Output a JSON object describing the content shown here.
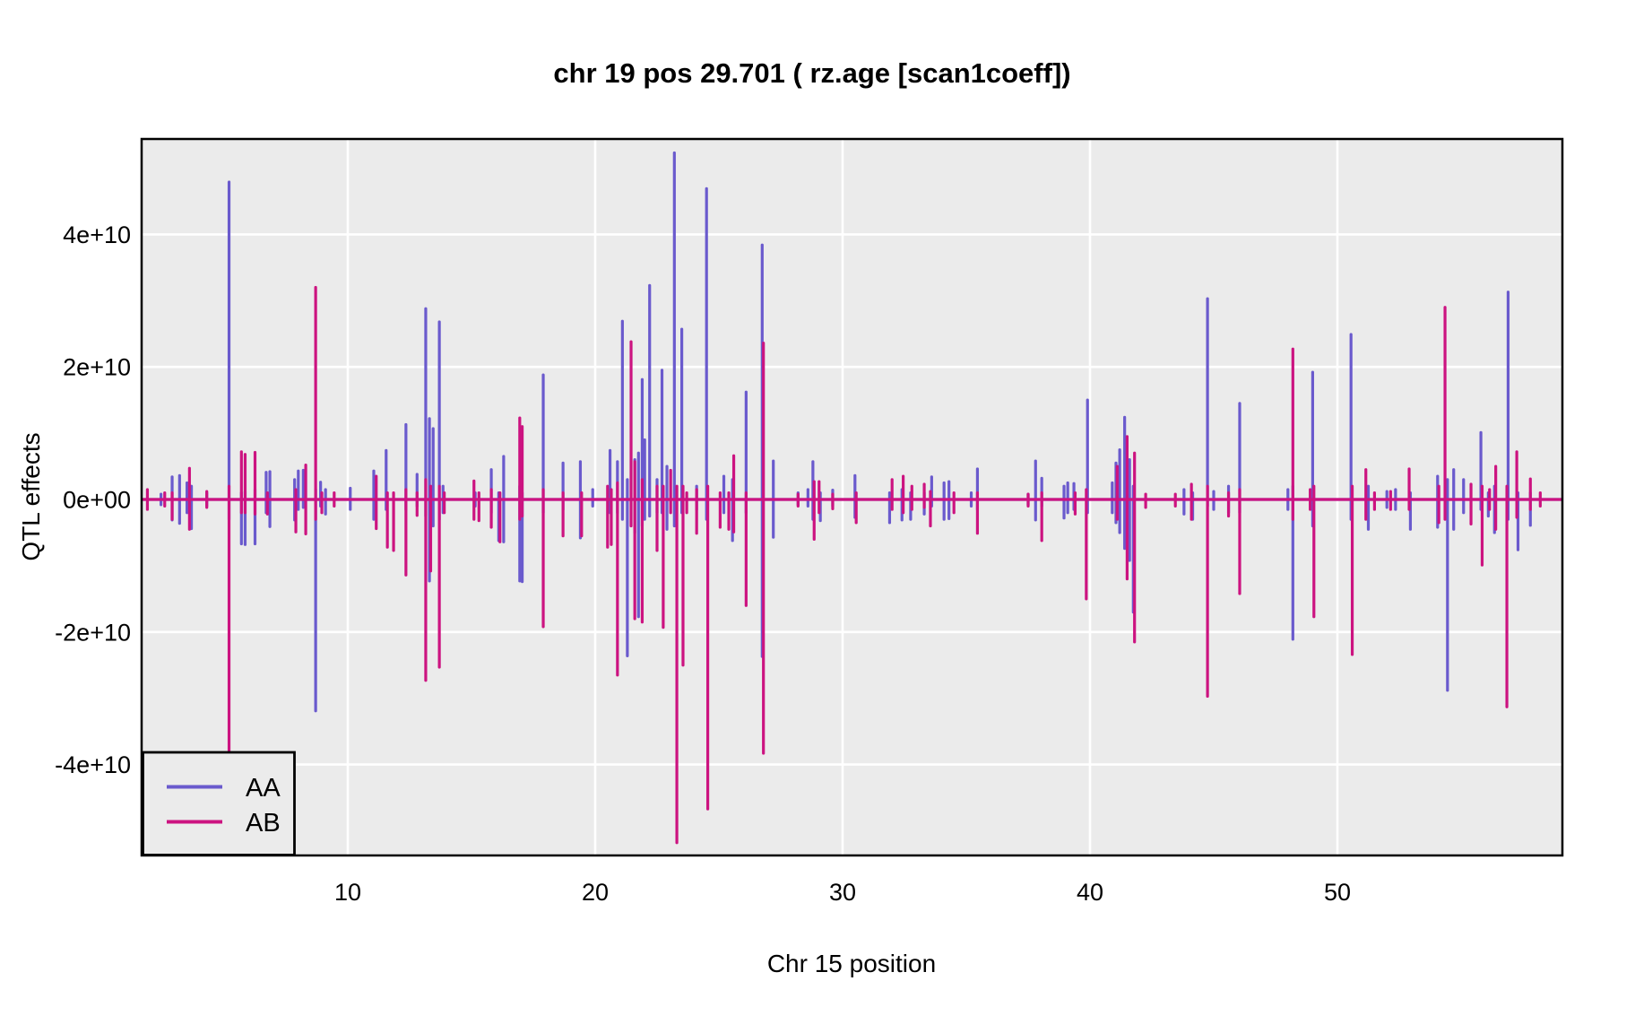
{
  "figure": {
    "title": "chr 19 pos 29.701 ( rz.age  [scan1coeff])",
    "x_axis": {
      "label": "Chr 15 position",
      "tick_labels": [
        "10",
        "20",
        "30",
        "40",
        "50"
      ],
      "tick_values": [
        10,
        20,
        30,
        40,
        50
      ]
    },
    "y_axis": {
      "label": "QTL effects",
      "tick_labels": [
        "4e+10",
        "2e+10",
        "0e+00",
        "-2e+10",
        "-4e+10"
      ],
      "tick_values_e10": [
        4,
        2,
        0,
        -2,
        -4
      ]
    }
  },
  "legend": {
    "items": [
      {
        "label": "AA",
        "color": "#6A5ACD"
      },
      {
        "label": "AB",
        "color": "#CC1380"
      }
    ]
  },
  "colors": {
    "panel_background": "#EBEBEB",
    "gridline": "#FFFFFF",
    "panel_border": "#000000",
    "series_aa": "#6A5ACD",
    "series_ab": "#CC1380"
  },
  "chart_data": {
    "type": "line",
    "title": "chr 19 pos 29.701 ( rz.age  [scan1coeff])",
    "xlabel": "Chr 15 position",
    "ylabel": "QTL effects",
    "x_range": [
      1.7,
      59.1
    ],
    "ylim_e10": [
      -5.4,
      5.45
    ],
    "grid": true,
    "legend_position": "bottom-left",
    "units_note": "spike values in units of 1e10; each spike = [position, min, max]; both series also run along baseline 0",
    "series": [
      {
        "name": "AA",
        "color": "#6A5ACD",
        "baseline": 0,
        "spikes": [
          [
            2.45,
            -0.08,
            0.08
          ],
          [
            2.9,
            -0.31,
            0.34
          ],
          [
            3.2,
            -0.36,
            0.36
          ],
          [
            3.5,
            -0.2,
            0.25
          ],
          [
            3.68,
            -0.44,
            0.2
          ],
          [
            4.3,
            -0.1,
            0.1
          ],
          [
            5.2,
            -0.3,
            4.79
          ],
          [
            5.7,
            -0.67,
            0.1
          ],
          [
            5.85,
            -0.68,
            0.12
          ],
          [
            6.25,
            -0.67,
            0.15
          ],
          [
            6.7,
            -0.2,
            0.41
          ],
          [
            6.85,
            -0.41,
            0.42
          ],
          [
            7.85,
            -0.31,
            0.3
          ],
          [
            8.0,
            -0.15,
            0.43
          ],
          [
            8.2,
            -0.12,
            0.44
          ],
          [
            8.7,
            -3.19,
            0.15
          ],
          [
            8.9,
            -0.1,
            0.26
          ],
          [
            9.1,
            -0.22,
            0.15
          ],
          [
            10.1,
            -0.15,
            0.17
          ],
          [
            11.05,
            -0.3,
            0.43
          ],
          [
            11.55,
            -0.15,
            0.74
          ],
          [
            12.35,
            -0.15,
            1.13
          ],
          [
            12.8,
            -0.1,
            0.38
          ],
          [
            13.15,
            -0.25,
            2.88
          ],
          [
            13.3,
            -1.23,
            1.22
          ],
          [
            13.45,
            -0.4,
            1.07
          ],
          [
            13.7,
            -0.3,
            2.68
          ],
          [
            13.85,
            -0.2,
            0.2
          ],
          [
            15.15,
            -0.1,
            0.1
          ],
          [
            15.8,
            -0.2,
            0.45
          ],
          [
            16.1,
            -0.62,
            0.1
          ],
          [
            16.3,
            -0.64,
            0.65
          ],
          [
            16.95,
            -1.23,
            0.2
          ],
          [
            17.05,
            -1.24,
            0.1
          ],
          [
            17.9,
            -0.2,
            1.88
          ],
          [
            18.7,
            -0.15,
            0.55
          ],
          [
            19.4,
            -0.58,
            0.57
          ],
          [
            19.9,
            -0.1,
            0.15
          ],
          [
            20.6,
            -0.2,
            0.74
          ],
          [
            20.9,
            -0.2,
            0.57
          ],
          [
            21.1,
            -0.3,
            2.69
          ],
          [
            21.3,
            -2.36,
            0.3
          ],
          [
            21.6,
            -0.5,
            0.6
          ],
          [
            21.75,
            -1.77,
            0.7
          ],
          [
            21.9,
            -0.4,
            1.81
          ],
          [
            22.0,
            -0.3,
            0.9
          ],
          [
            22.2,
            -0.25,
            3.23
          ],
          [
            22.5,
            -0.2,
            0.3
          ],
          [
            22.7,
            -0.2,
            1.95
          ],
          [
            22.9,
            -0.45,
            0.5
          ],
          [
            23.2,
            -0.4,
            5.23
          ],
          [
            23.5,
            -0.2,
            2.57
          ],
          [
            24.1,
            -0.15,
            0.2
          ],
          [
            24.5,
            -0.3,
            4.69
          ],
          [
            25.2,
            -0.2,
            0.35
          ],
          [
            25.55,
            -0.62,
            0.3
          ],
          [
            26.1,
            -0.2,
            1.62
          ],
          [
            26.75,
            -2.37,
            3.84
          ],
          [
            27.2,
            -0.57,
            0.58
          ],
          [
            28.2,
            -0.08,
            0.1
          ],
          [
            28.6,
            -0.1,
            0.15
          ],
          [
            28.8,
            -0.3,
            0.57
          ],
          [
            29.1,
            -0.32,
            0.1
          ],
          [
            29.6,
            -0.1,
            0.14
          ],
          [
            30.5,
            -0.27,
            0.36
          ],
          [
            31.9,
            -0.35,
            0.1
          ],
          [
            32.4,
            -0.31,
            0.15
          ],
          [
            32.75,
            -0.3,
            0.1
          ],
          [
            33.3,
            -0.22,
            0.1
          ],
          [
            33.6,
            -0.1,
            0.34
          ],
          [
            34.1,
            -0.3,
            0.25
          ],
          [
            34.3,
            -0.29,
            0.27
          ],
          [
            35.2,
            -0.1,
            0.1
          ],
          [
            35.45,
            -0.15,
            0.46
          ],
          [
            37.5,
            -0.08,
            0.08
          ],
          [
            37.8,
            -0.31,
            0.58
          ],
          [
            38.05,
            -0.1,
            0.32
          ],
          [
            38.95,
            -0.28,
            0.2
          ],
          [
            39.1,
            -0.2,
            0.25
          ],
          [
            39.35,
            -0.15,
            0.24
          ],
          [
            39.9,
            -0.2,
            1.5
          ],
          [
            40.9,
            -0.2,
            0.25
          ],
          [
            41.05,
            -0.35,
            0.55
          ],
          [
            41.2,
            -0.5,
            0.75
          ],
          [
            41.4,
            -0.74,
            1.24
          ],
          [
            41.6,
            -0.92,
            0.6
          ],
          [
            41.75,
            -1.7,
            0.2
          ],
          [
            43.8,
            -0.22,
            0.15
          ],
          [
            44.15,
            -0.3,
            0.1
          ],
          [
            44.75,
            -0.1,
            3.03
          ],
          [
            45.0,
            -0.15,
            0.12
          ],
          [
            45.6,
            -0.2,
            0.2
          ],
          [
            46.05,
            -0.2,
            1.45
          ],
          [
            48.0,
            -0.15,
            0.15
          ],
          [
            48.2,
            -2.11,
            0.2
          ],
          [
            49.0,
            -0.4,
            1.92
          ],
          [
            50.55,
            -0.3,
            2.49
          ],
          [
            51.25,
            -0.45,
            0.2
          ],
          [
            52.0,
            -0.12,
            0.12
          ],
          [
            52.35,
            -0.15,
            0.15
          ],
          [
            52.95,
            -0.45,
            0.1
          ],
          [
            54.05,
            -0.42,
            0.35
          ],
          [
            54.45,
            -2.88,
            0.3
          ],
          [
            54.7,
            -0.45,
            0.45
          ],
          [
            55.1,
            -0.2,
            0.3
          ],
          [
            55.8,
            -0.15,
            1.01
          ],
          [
            56.1,
            -0.25,
            0.1
          ],
          [
            56.35,
            -0.5,
            0.2
          ],
          [
            56.9,
            -0.3,
            3.13
          ],
          [
            57.3,
            -0.76,
            0.1
          ],
          [
            57.8,
            -0.39,
            0.1
          ]
        ]
      },
      {
        "name": "AB",
        "color": "#CC1380",
        "baseline": 0,
        "spikes": [
          [
            1.9,
            -0.15,
            0.15
          ],
          [
            2.6,
            -0.1,
            0.1
          ],
          [
            2.9,
            -0.3,
            0.1
          ],
          [
            3.6,
            -0.45,
            0.47
          ],
          [
            4.3,
            -0.12,
            0.12
          ],
          [
            5.2,
            -3.8,
            0.2
          ],
          [
            5.7,
            -0.2,
            0.72
          ],
          [
            5.85,
            -0.2,
            0.68
          ],
          [
            6.25,
            -0.22,
            0.71
          ],
          [
            6.75,
            -0.22,
            0.1
          ],
          [
            7.9,
            -0.49,
            0.15
          ],
          [
            8.3,
            -0.52,
            0.52
          ],
          [
            8.7,
            -0.3,
            3.2
          ],
          [
            8.95,
            -0.2,
            0.1
          ],
          [
            9.45,
            -0.1,
            0.1
          ],
          [
            11.15,
            -0.44,
            0.35
          ],
          [
            11.6,
            -0.72,
            0.1
          ],
          [
            11.85,
            -0.77,
            0.1
          ],
          [
            12.35,
            -1.14,
            0.15
          ],
          [
            12.8,
            -0.24,
            0.1
          ],
          [
            13.15,
            -2.73,
            0.3
          ],
          [
            13.35,
            -1.08,
            0.2
          ],
          [
            13.7,
            -2.53,
            0.2
          ],
          [
            13.9,
            -0.2,
            0.1
          ],
          [
            15.1,
            -0.3,
            0.28
          ],
          [
            15.3,
            -0.32,
            0.1
          ],
          [
            15.8,
            -0.42,
            0.15
          ],
          [
            16.15,
            -0.64,
            0.1
          ],
          [
            16.95,
            -0.3,
            1.23
          ],
          [
            17.05,
            -0.25,
            1.1
          ],
          [
            17.9,
            -1.92,
            0.15
          ],
          [
            18.7,
            -0.55,
            0.1
          ],
          [
            19.45,
            -0.55,
            0.1
          ],
          [
            20.5,
            -0.72,
            0.2
          ],
          [
            20.65,
            -0.68,
            0.15
          ],
          [
            20.9,
            -2.65,
            0.25
          ],
          [
            21.45,
            -0.4,
            2.38
          ],
          [
            21.6,
            -1.8,
            0.57
          ],
          [
            21.9,
            -1.85,
            0.3
          ],
          [
            22.5,
            -0.77,
            0.2
          ],
          [
            22.75,
            -1.93,
            0.2
          ],
          [
            23.05,
            -0.2,
            0.44
          ],
          [
            23.3,
            -5.18,
            0.2
          ],
          [
            23.55,
            -2.5,
            0.2
          ],
          [
            23.7,
            -0.2,
            0.1
          ],
          [
            24.1,
            -0.51,
            0.15
          ],
          [
            24.55,
            -4.67,
            0.2
          ],
          [
            25.05,
            -0.42,
            0.1
          ],
          [
            25.4,
            -0.45,
            0.1
          ],
          [
            25.6,
            -0.49,
            0.66
          ],
          [
            26.1,
            -1.6,
            0.1
          ],
          [
            26.8,
            -3.83,
            2.36
          ],
          [
            28.2,
            -0.1,
            0.08
          ],
          [
            28.85,
            -0.6,
            0.27
          ],
          [
            29.05,
            -0.2,
            0.27
          ],
          [
            29.6,
            -0.14,
            0.08
          ],
          [
            30.55,
            -0.35,
            0.1
          ],
          [
            32.0,
            -0.15,
            0.3
          ],
          [
            32.45,
            -0.2,
            0.35
          ],
          [
            32.8,
            -0.15,
            0.2
          ],
          [
            33.3,
            -0.12,
            0.23
          ],
          [
            33.55,
            -0.4,
            0.12
          ],
          [
            34.5,
            -0.2,
            0.1
          ],
          [
            35.45,
            -0.51,
            0.1
          ],
          [
            37.5,
            -0.1,
            0.08
          ],
          [
            38.05,
            -0.62,
            0.1
          ],
          [
            39.4,
            -0.22,
            0.1
          ],
          [
            39.85,
            -1.5,
            0.15
          ],
          [
            41.1,
            -0.3,
            0.5
          ],
          [
            41.5,
            -1.2,
            0.95
          ],
          [
            41.8,
            -2.15,
            0.7
          ],
          [
            42.25,
            -0.12,
            0.08
          ],
          [
            43.45,
            -0.1,
            0.08
          ],
          [
            44.1,
            -0.3,
            0.23
          ],
          [
            44.75,
            -2.97,
            0.2
          ],
          [
            45.6,
            -0.25,
            0.1
          ],
          [
            46.05,
            -1.42,
            0.15
          ],
          [
            48.2,
            -0.3,
            2.27
          ],
          [
            48.9,
            -0.15,
            0.15
          ],
          [
            49.05,
            -1.77,
            0.2
          ],
          [
            50.6,
            -2.34,
            0.2
          ],
          [
            51.15,
            -0.3,
            0.45
          ],
          [
            51.5,
            -0.15,
            0.1
          ],
          [
            52.15,
            -0.15,
            0.12
          ],
          [
            52.9,
            -0.15,
            0.46
          ],
          [
            54.1,
            -0.35,
            0.2
          ],
          [
            54.35,
            -0.3,
            2.9
          ],
          [
            55.4,
            -0.37,
            0.23
          ],
          [
            55.85,
            -0.99,
            0.2
          ],
          [
            56.15,
            -0.15,
            0.15
          ],
          [
            56.4,
            -0.45,
            0.5
          ],
          [
            56.85,
            -3.13,
            0.2
          ],
          [
            57.25,
            -0.27,
            0.72
          ],
          [
            57.8,
            -0.15,
            0.31
          ],
          [
            58.2,
            -0.1,
            0.1
          ]
        ]
      }
    ]
  }
}
